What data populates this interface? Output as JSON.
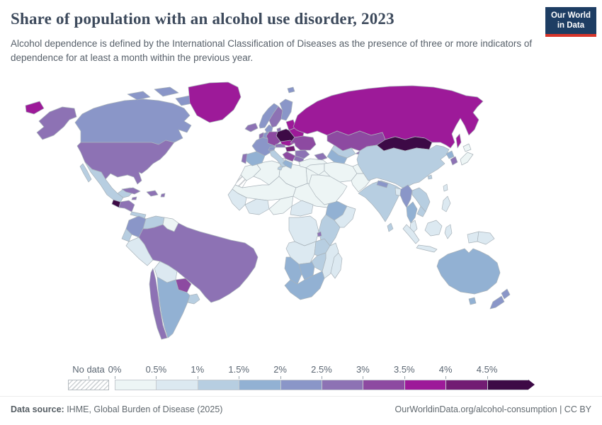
{
  "header": {
    "title": "Share of population with an alcohol use disorder, 2023",
    "subtitle": "Alcohol dependence is defined by the International Classification of Diseases as the presence of three or more indicators of dependence for at least a month within the previous year.",
    "logo": {
      "line1": "Our World",
      "line2": "in Data"
    }
  },
  "legend": {
    "no_data_label": "No data",
    "ticks": [
      "0%",
      "0.5%",
      "1%",
      "1.5%",
      "2%",
      "2.5%",
      "3%",
      "3.5%",
      "4%",
      "4.5%"
    ]
  },
  "map": {
    "type": "choropleth-world-map",
    "unit": "%",
    "bins": [
      {
        "range": "0-0.5%",
        "color": "#edf5f5"
      },
      {
        "range": "0.5-1%",
        "color": "#dce9f1"
      },
      {
        "range": "1-1.5%",
        "color": "#b7cee1"
      },
      {
        "range": "1.5-2%",
        "color": "#92b1d3"
      },
      {
        "range": "2-2.5%",
        "color": "#8a96c8"
      },
      {
        "range": "2.5-3%",
        "color": "#8d72b4"
      },
      {
        "range": "3-3.5%",
        "color": "#8d4aa1"
      },
      {
        "range": "3.5-4%",
        "color": "#9d1a99"
      },
      {
        "range": "4-4.5%",
        "color": "#721c73"
      },
      {
        "range": "4.5%+",
        "color": "#3d0a46"
      }
    ],
    "border_color": "#a9b3ba",
    "regions": {
      "chukotka-west": 7,
      "alaska": 5,
      "canada": 4,
      "canada-arctic": 4,
      "greenland": 7,
      "usa": 5,
      "mexico": 2,
      "guatemala": 9,
      "honduras-nicaragua": 5,
      "costa-rica-panama": 2,
      "cuba": 5,
      "jamaica": 5,
      "hispaniola": 5,
      "puerto-rico": 5,
      "colombia": 4,
      "venezuela": 2,
      "guyanas": 0,
      "ecuador": 2,
      "peru": 1,
      "brazil": 5,
      "bolivia": 1,
      "paraguay": 6,
      "chile": 5,
      "argentina": 3,
      "uruguay": 2,
      "iceland": 5,
      "norway": 4,
      "sweden": 5,
      "finland": 4,
      "denmark": 5,
      "uk": 4,
      "ireland": 5,
      "baltics": 7,
      "belarus": 7,
      "poland": 9,
      "germany": 6,
      "benelux": 4,
      "france": 4,
      "spain": 3,
      "portugal": 5,
      "switzerland": 4,
      "italy": 2,
      "austria": 5,
      "czech-slovakia": 7,
      "hungary": 8,
      "ukraine": 6,
      "romania": 5,
      "balkans": 6,
      "bulgaria": 5,
      "greece": 3,
      "russia": 7,
      "turkey": 0,
      "caucasus": 5,
      "kazakhstan": 6,
      "uzbekistan": 2,
      "turkmenistan": 3,
      "kyrgyzstan": 5,
      "iran": 0,
      "iraq-syria": 0,
      "arabian-peninsula": 0,
      "afghanistan": 0,
      "pakistan": 0,
      "india": 2,
      "nepal": 4,
      "bangladesh": 1,
      "sri-lanka": 2,
      "myanmar": 4,
      "thailand": 3,
      "laos-vietnam": 2,
      "cambodia": 2,
      "malaysia": 1,
      "indonesia": 1,
      "philippines": 1,
      "taiwan": 1,
      "china": 2,
      "mongolia": 9,
      "north-korea": 3,
      "south-korea": 5,
      "japan": 0,
      "png": 1,
      "australia": 3,
      "new-zealand": 4,
      "morocco": 0,
      "western-sahara": "no-data",
      "algeria": 0,
      "tunisia": 0,
      "libya": 0,
      "egypt": 0,
      "mauritania-mali": 0,
      "chad-sudan": 0,
      "west-africa": 1,
      "ghana-ivory": 1,
      "nigeria": 0,
      "cameroon": 1,
      "ethiopia": 3,
      "somalia": 1,
      "kenya-tanzania": 2,
      "drc": 1,
      "rwanda-burundi": 5,
      "angola": 1,
      "zambia": 2,
      "mozambique": 1,
      "zimbabwe": 2,
      "namibia": 3,
      "botswana": 3,
      "south-africa": 3,
      "madagascar": 1
    }
  },
  "footer": {
    "source_label": "Data source:",
    "source_text": " IHME, Global Burden of Disease (2025)",
    "credit": "OurWorldinData.org/alcohol-consumption | CC BY"
  }
}
